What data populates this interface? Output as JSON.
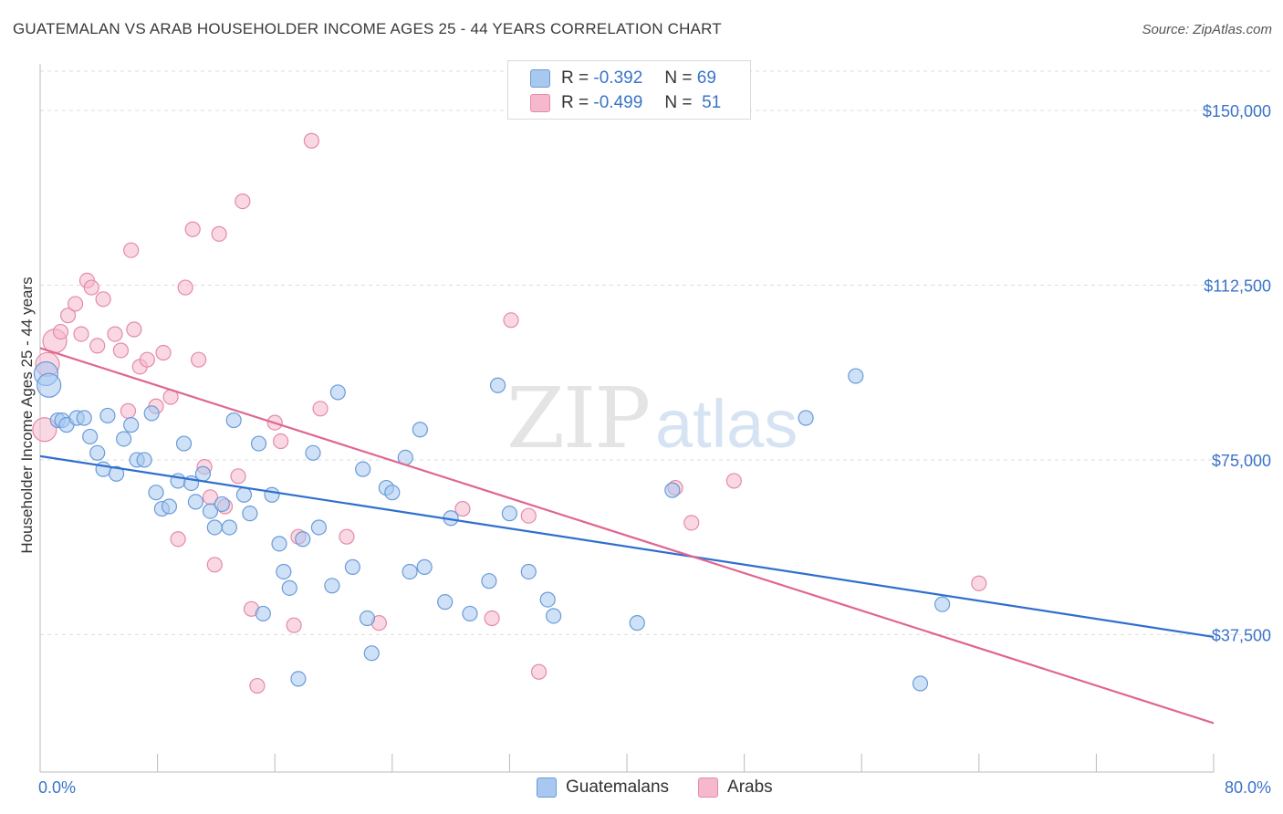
{
  "header": {
    "title": "GUATEMALAN VS ARAB HOUSEHOLDER INCOME AGES 25 - 44 YEARS CORRELATION CHART",
    "source": "Source: ZipAtlas.com"
  },
  "legend_top": {
    "rows": [
      {
        "r_label": "R =",
        "r_value": "-0.392",
        "n_label": "N =",
        "n_value": "69"
      },
      {
        "r_label": "R =",
        "r_value": "-0.499",
        "n_label": "N =",
        "n_value": "51"
      }
    ]
  },
  "legend_bottom": {
    "items": [
      "Guatemalans",
      "Arabs"
    ]
  },
  "watermark": {
    "zip": "ZIP",
    "atlas": "atlas"
  },
  "colors": {
    "blue_fill": "#a8c8f0",
    "blue_stroke": "#6a9bd8",
    "blue_line": "#2f6fce",
    "pink_fill": "#f5b8cc",
    "pink_stroke": "#e48aa8",
    "pink_line": "#e06692",
    "tick_label": "#3a73c9",
    "grid": "#dddddd"
  },
  "chart_data": {
    "type": "scatter",
    "title": "GUATEMALAN VS ARAB HOUSEHOLDER INCOME AGES 25 - 44 YEARS CORRELATION CHART",
    "xlabel": "",
    "ylabel": "Householder Income Ages 25 - 44 years",
    "xlim": [
      0,
      80
    ],
    "ylim": [
      8000,
      160000
    ],
    "x_tick_labels": [
      "0.0%",
      "80.0%"
    ],
    "y_ticks": [
      37500,
      75000,
      112500,
      150000
    ],
    "y_tick_labels": [
      "$37,500",
      "$75,000",
      "$112,500",
      "$150,000"
    ],
    "grid": true,
    "series": [
      {
        "name": "Guatemalans",
        "r": -0.392,
        "n": 69,
        "trend": {
          "x": [
            0,
            80
          ],
          "y": [
            75800,
            37000
          ]
        },
        "points": [
          [
            0.4,
            93500
          ],
          [
            0.6,
            91000
          ],
          [
            1.2,
            83500
          ],
          [
            1.5,
            83500
          ],
          [
            1.8,
            82500
          ],
          [
            2.5,
            84000
          ],
          [
            3.0,
            84000
          ],
          [
            3.4,
            80000
          ],
          [
            3.9,
            76500
          ],
          [
            4.3,
            73000
          ],
          [
            5.2,
            72000
          ],
          [
            4.6,
            84500
          ],
          [
            5.7,
            79500
          ],
          [
            6.2,
            82500
          ],
          [
            6.6,
            75000
          ],
          [
            7.1,
            75000
          ],
          [
            7.6,
            85000
          ],
          [
            7.9,
            68000
          ],
          [
            8.3,
            64500
          ],
          [
            8.8,
            65000
          ],
          [
            9.4,
            70500
          ],
          [
            9.8,
            78500
          ],
          [
            10.3,
            70000
          ],
          [
            10.6,
            66000
          ],
          [
            11.1,
            72000
          ],
          [
            11.6,
            64000
          ],
          [
            11.9,
            60500
          ],
          [
            12.4,
            65500
          ],
          [
            12.9,
            60500
          ],
          [
            13.2,
            83500
          ],
          [
            13.9,
            67500
          ],
          [
            14.3,
            63500
          ],
          [
            14.9,
            78500
          ],
          [
            15.2,
            42000
          ],
          [
            15.8,
            67500
          ],
          [
            16.3,
            57000
          ],
          [
            16.6,
            51000
          ],
          [
            17.0,
            47500
          ],
          [
            17.6,
            28000
          ],
          [
            17.9,
            58000
          ],
          [
            18.6,
            76500
          ],
          [
            19.0,
            60500
          ],
          [
            19.9,
            48000
          ],
          [
            20.3,
            89500
          ],
          [
            21.3,
            52000
          ],
          [
            22.0,
            73000
          ],
          [
            22.3,
            41000
          ],
          [
            22.6,
            33500
          ],
          [
            23.6,
            69000
          ],
          [
            24.0,
            68000
          ],
          [
            24.9,
            75500
          ],
          [
            25.2,
            51000
          ],
          [
            25.9,
            81500
          ],
          [
            26.2,
            52000
          ],
          [
            27.6,
            44500
          ],
          [
            28.0,
            62500
          ],
          [
            29.3,
            42000
          ],
          [
            30.6,
            49000
          ],
          [
            31.2,
            91000
          ],
          [
            32.0,
            63500
          ],
          [
            33.3,
            51000
          ],
          [
            34.6,
            45000
          ],
          [
            35.0,
            41500
          ],
          [
            43.1,
            68500
          ],
          [
            52.2,
            84000
          ],
          [
            55.6,
            93000
          ],
          [
            60.0,
            27000
          ],
          [
            61.5,
            44000
          ],
          [
            40.7,
            40000
          ]
        ]
      },
      {
        "name": "Arabs",
        "r": -0.499,
        "n": 51,
        "trend": {
          "x": [
            0,
            80
          ],
          "y": [
            99000,
            18500
          ]
        },
        "points": [
          [
            0.3,
            81500
          ],
          [
            0.5,
            95500
          ],
          [
            1.0,
            100500
          ],
          [
            1.4,
            102500
          ],
          [
            1.9,
            106000
          ],
          [
            2.4,
            108500
          ],
          [
            2.8,
            102000
          ],
          [
            3.2,
            113500
          ],
          [
            3.5,
            112000
          ],
          [
            3.9,
            99500
          ],
          [
            4.3,
            109500
          ],
          [
            5.1,
            102000
          ],
          [
            5.5,
            98500
          ],
          [
            6.0,
            85500
          ],
          [
            6.4,
            103000
          ],
          [
            6.8,
            95000
          ],
          [
            7.3,
            96500
          ],
          [
            7.9,
            86500
          ],
          [
            8.4,
            98000
          ],
          [
            8.9,
            88500
          ],
          [
            9.4,
            58000
          ],
          [
            9.9,
            112000
          ],
          [
            10.4,
            124500
          ],
          [
            10.8,
            96500
          ],
          [
            11.2,
            73500
          ],
          [
            11.6,
            67000
          ],
          [
            11.9,
            52500
          ],
          [
            12.2,
            123500
          ],
          [
            12.6,
            65000
          ],
          [
            13.8,
            130500
          ],
          [
            13.5,
            71500
          ],
          [
            14.4,
            43000
          ],
          [
            14.8,
            26500
          ],
          [
            16.0,
            83000
          ],
          [
            16.4,
            79000
          ],
          [
            17.3,
            39500
          ],
          [
            17.6,
            58500
          ],
          [
            18.5,
            143500
          ],
          [
            19.1,
            86000
          ],
          [
            20.9,
            58500
          ],
          [
            23.1,
            40000
          ],
          [
            28.8,
            64500
          ],
          [
            30.8,
            41000
          ],
          [
            32.1,
            105000
          ],
          [
            33.3,
            63000
          ],
          [
            34.0,
            29500
          ],
          [
            43.3,
            69000
          ],
          [
            44.4,
            61500
          ],
          [
            47.3,
            70500
          ],
          [
            64.0,
            48500
          ],
          [
            6.2,
            120000
          ]
        ]
      }
    ]
  }
}
